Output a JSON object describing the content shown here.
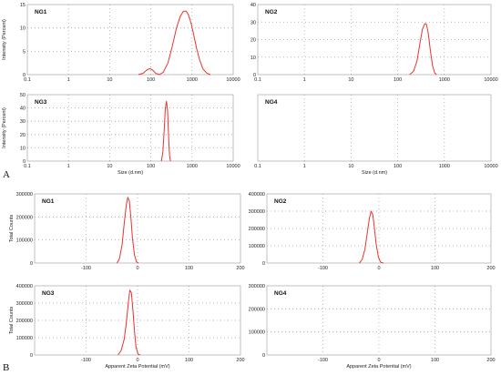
{
  "section_labels": [
    "A",
    "B"
  ],
  "chart_data": [
    {
      "id": "size_ng1",
      "section": "A",
      "type": "line",
      "title": "NG1",
      "xscale": "log",
      "xlim": [
        0.1,
        10000
      ],
      "ylim": [
        0,
        15
      ],
      "xticks": [
        0.1,
        1,
        10,
        100,
        1000,
        10000
      ],
      "xtick_labels": [
        "0.1",
        "1",
        "10",
        "100",
        "1000",
        "10000"
      ],
      "yticks": [
        0,
        5,
        10,
        15
      ],
      "ytick_labels": [
        "0",
        "5",
        "10",
        "15"
      ],
      "xlabel": "",
      "ylabel": "Intensity (Percent)",
      "series": [
        {
          "x": [
            50,
            65,
            80,
            95,
            110,
            130,
            160,
            200,
            260,
            330,
            420,
            520,
            620,
            720,
            820,
            950,
            1100,
            1300,
            1550,
            1850,
            2300,
            2800
          ],
          "y": [
            0,
            0.3,
            1.0,
            1.3,
            1.0,
            0.3,
            0,
            0.5,
            2.5,
            6.0,
            10.0,
            12.5,
            13.6,
            13.6,
            12.8,
            11.0,
            8.5,
            5.5,
            3.0,
            1.2,
            0.3,
            0
          ]
        }
      ],
      "color": "#e8332f"
    },
    {
      "id": "size_ng2",
      "section": "A",
      "type": "line",
      "title": "NG2",
      "xscale": "log",
      "xlim": [
        0.1,
        10000
      ],
      "ylim": [
        0,
        40
      ],
      "xticks": [
        0.1,
        1,
        10,
        100,
        1000,
        10000
      ],
      "xtick_labels": [
        "0.1",
        "1",
        "10",
        "100",
        "1000",
        "10000"
      ],
      "yticks": [
        0,
        10,
        20,
        30,
        40
      ],
      "ytick_labels": [
        "0",
        "10",
        "20",
        "30",
        "40"
      ],
      "xlabel": "",
      "ylabel": "",
      "series": [
        {
          "x": [
            180,
            220,
            260,
            300,
            340,
            380,
            410,
            450,
            500,
            560,
            620,
            680
          ],
          "y": [
            0,
            2,
            8,
            18,
            26,
            29,
            29,
            24,
            14,
            5,
            1,
            0
          ]
        }
      ],
      "color": "#e8332f"
    },
    {
      "id": "size_ng3",
      "section": "A",
      "type": "line",
      "title": "NG3",
      "xscale": "log",
      "xlim": [
        0.1,
        10000
      ],
      "ylim": [
        0,
        50
      ],
      "xticks": [
        0.1,
        1,
        10,
        100,
        1000,
        10000
      ],
      "xtick_labels": [
        "0.1",
        "1",
        "10",
        "100",
        "1000",
        "10000"
      ],
      "yticks": [
        0,
        10,
        20,
        30,
        40,
        50
      ],
      "ytick_labels": [
        "0",
        "10",
        "20",
        "30",
        "40",
        "50"
      ],
      "xlabel": "Size (d.nm)",
      "ylabel": "Intensity (Percent)",
      "series": [
        {
          "x": [
            180,
            195,
            210,
            225,
            240,
            255,
            270,
            285,
            300
          ],
          "y": [
            0,
            6,
            22,
            40,
            45,
            38,
            18,
            4,
            0
          ]
        }
      ],
      "color": "#e8332f"
    },
    {
      "id": "size_ng4",
      "section": "A",
      "type": "line",
      "title": "NG4",
      "xscale": "log",
      "xlim": [
        0.1,
        10000
      ],
      "ylim": [
        0,
        1
      ],
      "xticks": [
        0.1,
        1,
        10,
        100,
        1000,
        10000
      ],
      "xtick_labels": [
        "0.1",
        "1",
        "10",
        "100",
        "1000",
        "10000"
      ],
      "yticks": [],
      "ytick_labels": [],
      "xlabel": "Size (d.nm)",
      "ylabel": "",
      "series": [],
      "color": "#e8332f"
    },
    {
      "id": "zeta_ng1",
      "section": "B",
      "type": "line",
      "title": "NG1",
      "xscale": "linear",
      "xlim": [
        -200,
        200
      ],
      "ylim": [
        0,
        300000
      ],
      "xticks": [
        -100,
        0,
        100,
        200
      ],
      "xtick_labels": [
        "-100",
        "0",
        "100",
        "200"
      ],
      "yticks": [
        0,
        100000,
        200000,
        300000
      ],
      "ytick_labels": [
        "0",
        "100000",
        "200000",
        "300000"
      ],
      "xlabel": "",
      "ylabel": "Total Counts",
      "series": [
        {
          "x": [
            -40,
            -35,
            -30,
            -26,
            -22,
            -19,
            -16,
            -13,
            -10,
            -6,
            -2,
            2
          ],
          "y": [
            0,
            20000,
            80000,
            170000,
            250000,
            285000,
            270000,
            200000,
            110000,
            35000,
            5000,
            0
          ]
        }
      ],
      "color": "#e8332f"
    },
    {
      "id": "zeta_ng2",
      "section": "B",
      "type": "line",
      "title": "NG2",
      "xscale": "linear",
      "xlim": [
        -200,
        200
      ],
      "ylim": [
        0,
        400000
      ],
      "xticks": [
        -100,
        0,
        100,
        200
      ],
      "xtick_labels": [
        "-100",
        "0",
        "100",
        "200"
      ],
      "yticks": [
        0,
        100000,
        200000,
        300000,
        400000
      ],
      "ytick_labels": [
        "0",
        "100000",
        "200000",
        "300000",
        "400000"
      ],
      "xlabel": "",
      "ylabel": "",
      "series": [
        {
          "x": [
            -35,
            -30,
            -25,
            -21,
            -17,
            -14,
            -11,
            -8,
            -5,
            -1,
            3,
            8
          ],
          "y": [
            0,
            20000,
            80000,
            170000,
            260000,
            300000,
            280000,
            200000,
            110000,
            35000,
            5000,
            0
          ]
        }
      ],
      "color": "#e8332f"
    },
    {
      "id": "zeta_ng3",
      "section": "B",
      "type": "line",
      "title": "NG3",
      "xscale": "linear",
      "xlim": [
        -200,
        200
      ],
      "ylim": [
        0,
        400000
      ],
      "xticks": [
        -100,
        0,
        100,
        200
      ],
      "xtick_labels": [
        "-100",
        "0",
        "100",
        "200"
      ],
      "yticks": [
        0,
        100000,
        200000,
        300000,
        400000
      ],
      "ytick_labels": [
        "0",
        "100000",
        "200000",
        "300000",
        "400000"
      ],
      "xlabel": "Apparent Zeta Potential (mV)",
      "ylabel": "Total Counts",
      "series": [
        {
          "x": [
            -38,
            -32,
            -26,
            -22,
            -18,
            -15,
            -12,
            -9,
            -6,
            -3,
            1,
            5
          ],
          "y": [
            0,
            25000,
            90000,
            180000,
            300000,
            375000,
            360000,
            260000,
            140000,
            45000,
            5000,
            0
          ]
        }
      ],
      "color": "#e8332f"
    },
    {
      "id": "zeta_ng4",
      "section": "B",
      "type": "line",
      "title": "NG4",
      "xscale": "linear",
      "xlim": [
        -200,
        200
      ],
      "ylim": [
        0,
        300000
      ],
      "xticks": [
        -100,
        0,
        100,
        200
      ],
      "xtick_labels": [
        "-100",
        "0",
        "100",
        "200"
      ],
      "yticks": [
        0,
        100000,
        200000,
        300000
      ],
      "ytick_labels": [
        "0",
        "100000",
        "200000",
        "300000"
      ],
      "xlabel": "Apparent Zeta Potential (mV)",
      "ylabel": "",
      "series": [],
      "color": "#e8332f"
    }
  ]
}
